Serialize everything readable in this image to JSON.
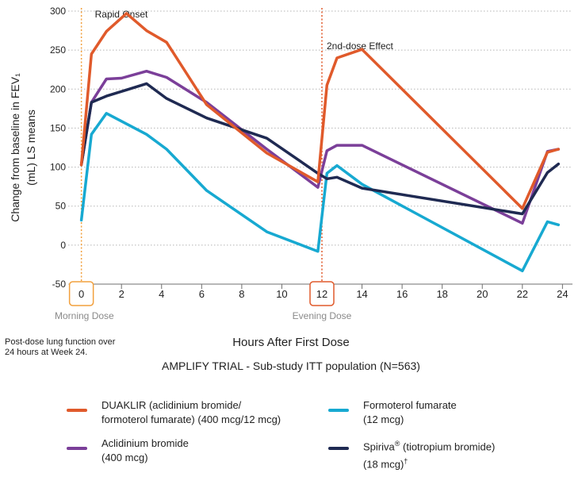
{
  "chart_data": {
    "type": "line",
    "ylabel_line1": "Change from baseline in FEV₁",
    "ylabel_line2": "(mL) LS means",
    "xlabel": "Hours After First Dose",
    "subtitle": "AMPLIFY TRIAL - Sub-study ITT population (N=563)",
    "xlim": [
      -0.5,
      24.5
    ],
    "ylim": [
      -50,
      300
    ],
    "yticks": [
      -50,
      0,
      50,
      100,
      150,
      200,
      250,
      300
    ],
    "xticks": [
      0,
      2,
      4,
      6,
      8,
      10,
      12,
      14,
      16,
      18,
      20,
      22,
      24
    ],
    "highlighted_xticks": [
      0,
      12
    ],
    "grid": "horizontal-dotted",
    "annotations": [
      {
        "x": 0,
        "label": "Rapid Onset",
        "color": "#f2a03d"
      },
      {
        "x": 12,
        "label": "2nd-dose Effect",
        "color": "#e05a2b"
      }
    ],
    "below_axis_labels": [
      {
        "x": 0,
        "label": "Morning Dose"
      },
      {
        "x": 12,
        "label": "Evening Dose"
      }
    ],
    "series": [
      {
        "name": "Formoterol fumarate",
        "color": "#17a9d1",
        "points": [
          [
            0,
            32
          ],
          [
            0.5,
            142
          ],
          [
            1.25,
            169
          ],
          [
            3.25,
            142
          ],
          [
            4.25,
            123
          ],
          [
            6.25,
            70
          ],
          [
            9.25,
            17
          ],
          [
            11.8,
            -8
          ],
          [
            12.25,
            92
          ],
          [
            12.75,
            102
          ],
          [
            14,
            78
          ],
          [
            22,
            -33
          ],
          [
            23.25,
            30
          ],
          [
            23.8,
            26
          ]
        ]
      },
      {
        "name": "Aclidinium bromide",
        "color": "#7b3f99",
        "points": [
          [
            0,
            103
          ],
          [
            0.5,
            183
          ],
          [
            1.25,
            213
          ],
          [
            2,
            214
          ],
          [
            3.25,
            223
          ],
          [
            4.25,
            215
          ],
          [
            6.25,
            183
          ],
          [
            9.25,
            123
          ],
          [
            11.8,
            74
          ],
          [
            12.25,
            121
          ],
          [
            12.75,
            128
          ],
          [
            14,
            128
          ],
          [
            22,
            28
          ],
          [
            23.25,
            120
          ],
          [
            23.8,
            123
          ]
        ]
      },
      {
        "name": "Spiriva (tiotropium bromide)",
        "color": "#1f2a52",
        "points": [
          [
            0,
            103
          ],
          [
            0.5,
            183
          ],
          [
            1.25,
            191
          ],
          [
            2.25,
            199
          ],
          [
            3.25,
            207
          ],
          [
            4.25,
            188
          ],
          [
            6.25,
            163
          ],
          [
            9.25,
            137
          ],
          [
            11.8,
            92
          ],
          [
            12.25,
            85
          ],
          [
            12.75,
            87
          ],
          [
            14,
            73
          ],
          [
            22,
            40
          ],
          [
            23.25,
            93
          ],
          [
            23.8,
            104
          ]
        ]
      },
      {
        "name": "DUAKLIR (aclidinium bromide/formoterol fumarate)",
        "color": "#e05a2b",
        "points": [
          [
            0,
            103
          ],
          [
            0.5,
            245
          ],
          [
            1.25,
            274
          ],
          [
            2.25,
            297
          ],
          [
            3.25,
            275
          ],
          [
            4.25,
            260
          ],
          [
            6.25,
            180
          ],
          [
            9.25,
            118
          ],
          [
            11.8,
            81
          ],
          [
            12.25,
            205
          ],
          [
            12.75,
            240
          ],
          [
            14,
            251
          ],
          [
            22,
            47
          ],
          [
            23.25,
            119
          ],
          [
            23.8,
            123
          ]
        ]
      }
    ]
  },
  "note": "Post-dose lung function over 24 hours at Week 24.",
  "legend": [
    {
      "key": "duaklir",
      "line1": "DUAKLIR (aclidinium bromide/",
      "line2": "formoterol fumarate) (400 mcg/12 mcg)",
      "color": "#e05a2b"
    },
    {
      "key": "formoterol",
      "line1": "Formoterol fumarate",
      "line2": "(12 mcg)",
      "color": "#17a9d1"
    },
    {
      "key": "aclidinium",
      "line1": "Aclidinium bromide",
      "line2": "(400 mcg)",
      "color": "#7b3f99"
    },
    {
      "key": "spiriva",
      "line1": "Spiriva",
      "reg": "®",
      "line1b": " (tiotropium bromide)",
      "line2": "(18 mcg)",
      "dagger": "†",
      "color": "#1f2a52"
    }
  ]
}
